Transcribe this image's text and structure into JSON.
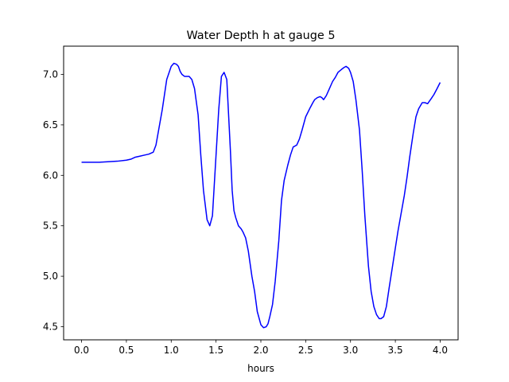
{
  "chart_data": {
    "type": "line",
    "title": "Water Depth h at gauge 5",
    "xlabel": "hours",
    "ylabel": "",
    "xlim": [
      -0.2,
      4.2
    ],
    "ylim": [
      4.37,
      7.28
    ],
    "xticks": [
      0.0,
      0.5,
      1.0,
      1.5,
      2.0,
      2.5,
      3.0,
      3.5,
      4.0
    ],
    "xtick_labels": [
      "0.0",
      "0.5",
      "1.0",
      "1.5",
      "2.0",
      "2.5",
      "3.0",
      "3.5",
      "4.0"
    ],
    "yticks": [
      4.5,
      5.0,
      5.5,
      6.0,
      6.5,
      7.0
    ],
    "ytick_labels": [
      "4.5",
      "5.0",
      "5.5",
      "6.0",
      "6.5",
      "7.0"
    ],
    "grid": false,
    "legend": "none",
    "series": [
      {
        "color": "#0000ff",
        "x": [
          0.0,
          0.2,
          0.4,
          0.5,
          0.55,
          0.6,
          0.65,
          0.7,
          0.75,
          0.8,
          0.83,
          0.86,
          0.9,
          0.95,
          1.0,
          1.03,
          1.06,
          1.08,
          1.1,
          1.12,
          1.15,
          1.18,
          1.2,
          1.23,
          1.26,
          1.3,
          1.33,
          1.36,
          1.4,
          1.43,
          1.46,
          1.48,
          1.5,
          1.53,
          1.56,
          1.59,
          1.62,
          1.64,
          1.66,
          1.68,
          1.7,
          1.72,
          1.75,
          1.78,
          1.8,
          1.83,
          1.86,
          1.9,
          1.93,
          1.96,
          2.0,
          2.03,
          2.06,
          2.08,
          2.1,
          2.13,
          2.16,
          2.2,
          2.23,
          2.26,
          2.3,
          2.33,
          2.36,
          2.4,
          2.43,
          2.46,
          2.5,
          2.55,
          2.58,
          2.6,
          2.63,
          2.66,
          2.68,
          2.7,
          2.73,
          2.76,
          2.8,
          2.83,
          2.86,
          2.9,
          2.93,
          2.95,
          2.98,
          3.0,
          3.03,
          3.06,
          3.1,
          3.13,
          3.16,
          3.2,
          3.23,
          3.26,
          3.29,
          3.32,
          3.34,
          3.37,
          3.4,
          3.43,
          3.46,
          3.5,
          3.53,
          3.56,
          3.6,
          3.63,
          3.66,
          3.7,
          3.73,
          3.76,
          3.8,
          3.83,
          3.86,
          3.9,
          3.93,
          3.96,
          4.0
        ],
        "y": [
          6.13,
          6.13,
          6.14,
          6.15,
          6.16,
          6.18,
          6.19,
          6.2,
          6.21,
          6.23,
          6.3,
          6.45,
          6.65,
          6.95,
          7.08,
          7.11,
          7.1,
          7.08,
          7.03,
          7.0,
          6.98,
          6.98,
          6.98,
          6.95,
          6.86,
          6.6,
          6.2,
          5.85,
          5.56,
          5.5,
          5.6,
          5.9,
          6.2,
          6.65,
          6.98,
          7.02,
          6.95,
          6.6,
          6.25,
          5.85,
          5.65,
          5.58,
          5.5,
          5.47,
          5.44,
          5.38,
          5.25,
          5.0,
          4.85,
          4.65,
          4.52,
          4.49,
          4.5,
          4.53,
          4.6,
          4.72,
          4.95,
          5.35,
          5.75,
          5.95,
          6.1,
          6.2,
          6.28,
          6.3,
          6.36,
          6.45,
          6.58,
          6.67,
          6.72,
          6.75,
          6.77,
          6.78,
          6.77,
          6.75,
          6.79,
          6.85,
          6.93,
          6.97,
          7.02,
          7.05,
          7.07,
          7.08,
          7.06,
          7.02,
          6.93,
          6.75,
          6.45,
          6.05,
          5.6,
          5.1,
          4.85,
          4.7,
          4.62,
          4.58,
          4.58,
          4.6,
          4.7,
          4.88,
          5.05,
          5.28,
          5.45,
          5.6,
          5.8,
          5.98,
          6.18,
          6.42,
          6.58,
          6.66,
          6.72,
          6.72,
          6.71,
          6.76,
          6.8,
          6.85,
          6.92
        ]
      }
    ]
  }
}
